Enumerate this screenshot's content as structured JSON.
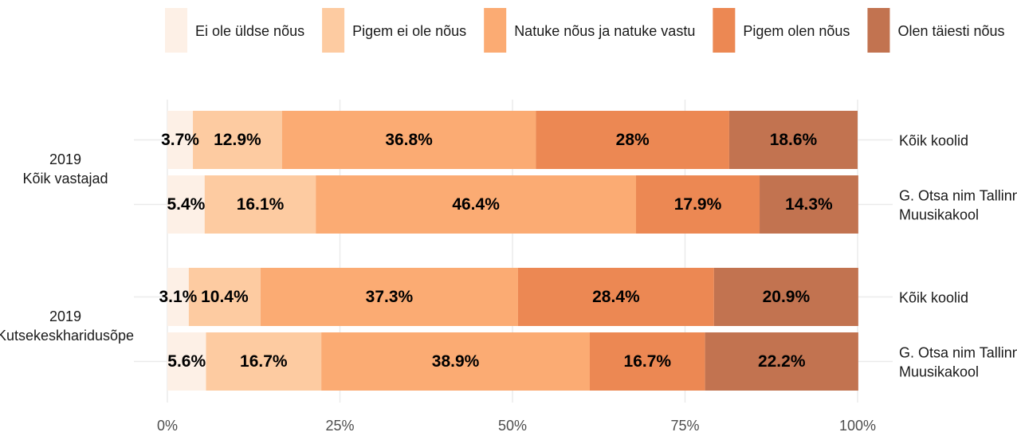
{
  "chart_data": {
    "type": "stacked_barh",
    "groups": [
      "2019\nKõik vastajad",
      "2019\nKutsekeskharidusõpe"
    ],
    "categories": [
      "Kõik koolid",
      "G. Otsa nim Tallinna\nMuusikakool",
      "Kõik koolid",
      "G. Otsa nim Tallinna\nMuusikakool"
    ],
    "series": [
      {
        "name": "Ei ole üldse nõus",
        "color": "#fdf0e6",
        "values": [
          3.7,
          5.4,
          3.1,
          5.6
        ],
        "value_labels": [
          "3.7%",
          "5.4%",
          "3.1%",
          "5.6%"
        ]
      },
      {
        "name": "Pigem ei ole nõus",
        "color": "#fdcba1",
        "values": [
          12.9,
          16.1,
          10.4,
          16.7
        ],
        "value_labels": [
          "12.9%",
          "16.1%",
          "10.4%",
          "16.7%"
        ]
      },
      {
        "name": "Natuke nõus ja natuke vastu",
        "color": "#fbab73",
        "values": [
          36.8,
          46.4,
          37.3,
          38.9
        ],
        "value_labels": [
          "36.8%",
          "46.4%",
          "37.3%",
          "38.9%"
        ]
      },
      {
        "name": "Pigem olen nõus",
        "color": "#ec8853",
        "values": [
          28,
          17.9,
          28.4,
          16.7
        ],
        "value_labels": [
          "28%",
          "17.9%",
          "28.4%",
          "16.7%"
        ]
      },
      {
        "name": "Olen täiesti nõus",
        "color": "#c27350",
        "values": [
          18.6,
          14.3,
          20.9,
          22.2
        ],
        "value_labels": [
          "18.6%",
          "14.3%",
          "20.9%",
          "22.2%"
        ]
      }
    ],
    "xlim": [
      0,
      100
    ],
    "xticks": [
      {
        "value": 0,
        "label": "0%"
      },
      {
        "value": 25,
        "label": "25%"
      },
      {
        "value": 50,
        "label": "50%"
      },
      {
        "value": 75,
        "label": "75%"
      },
      {
        "value": 100,
        "label": "100%"
      }
    ],
    "grid": true,
    "legend": "top"
  }
}
